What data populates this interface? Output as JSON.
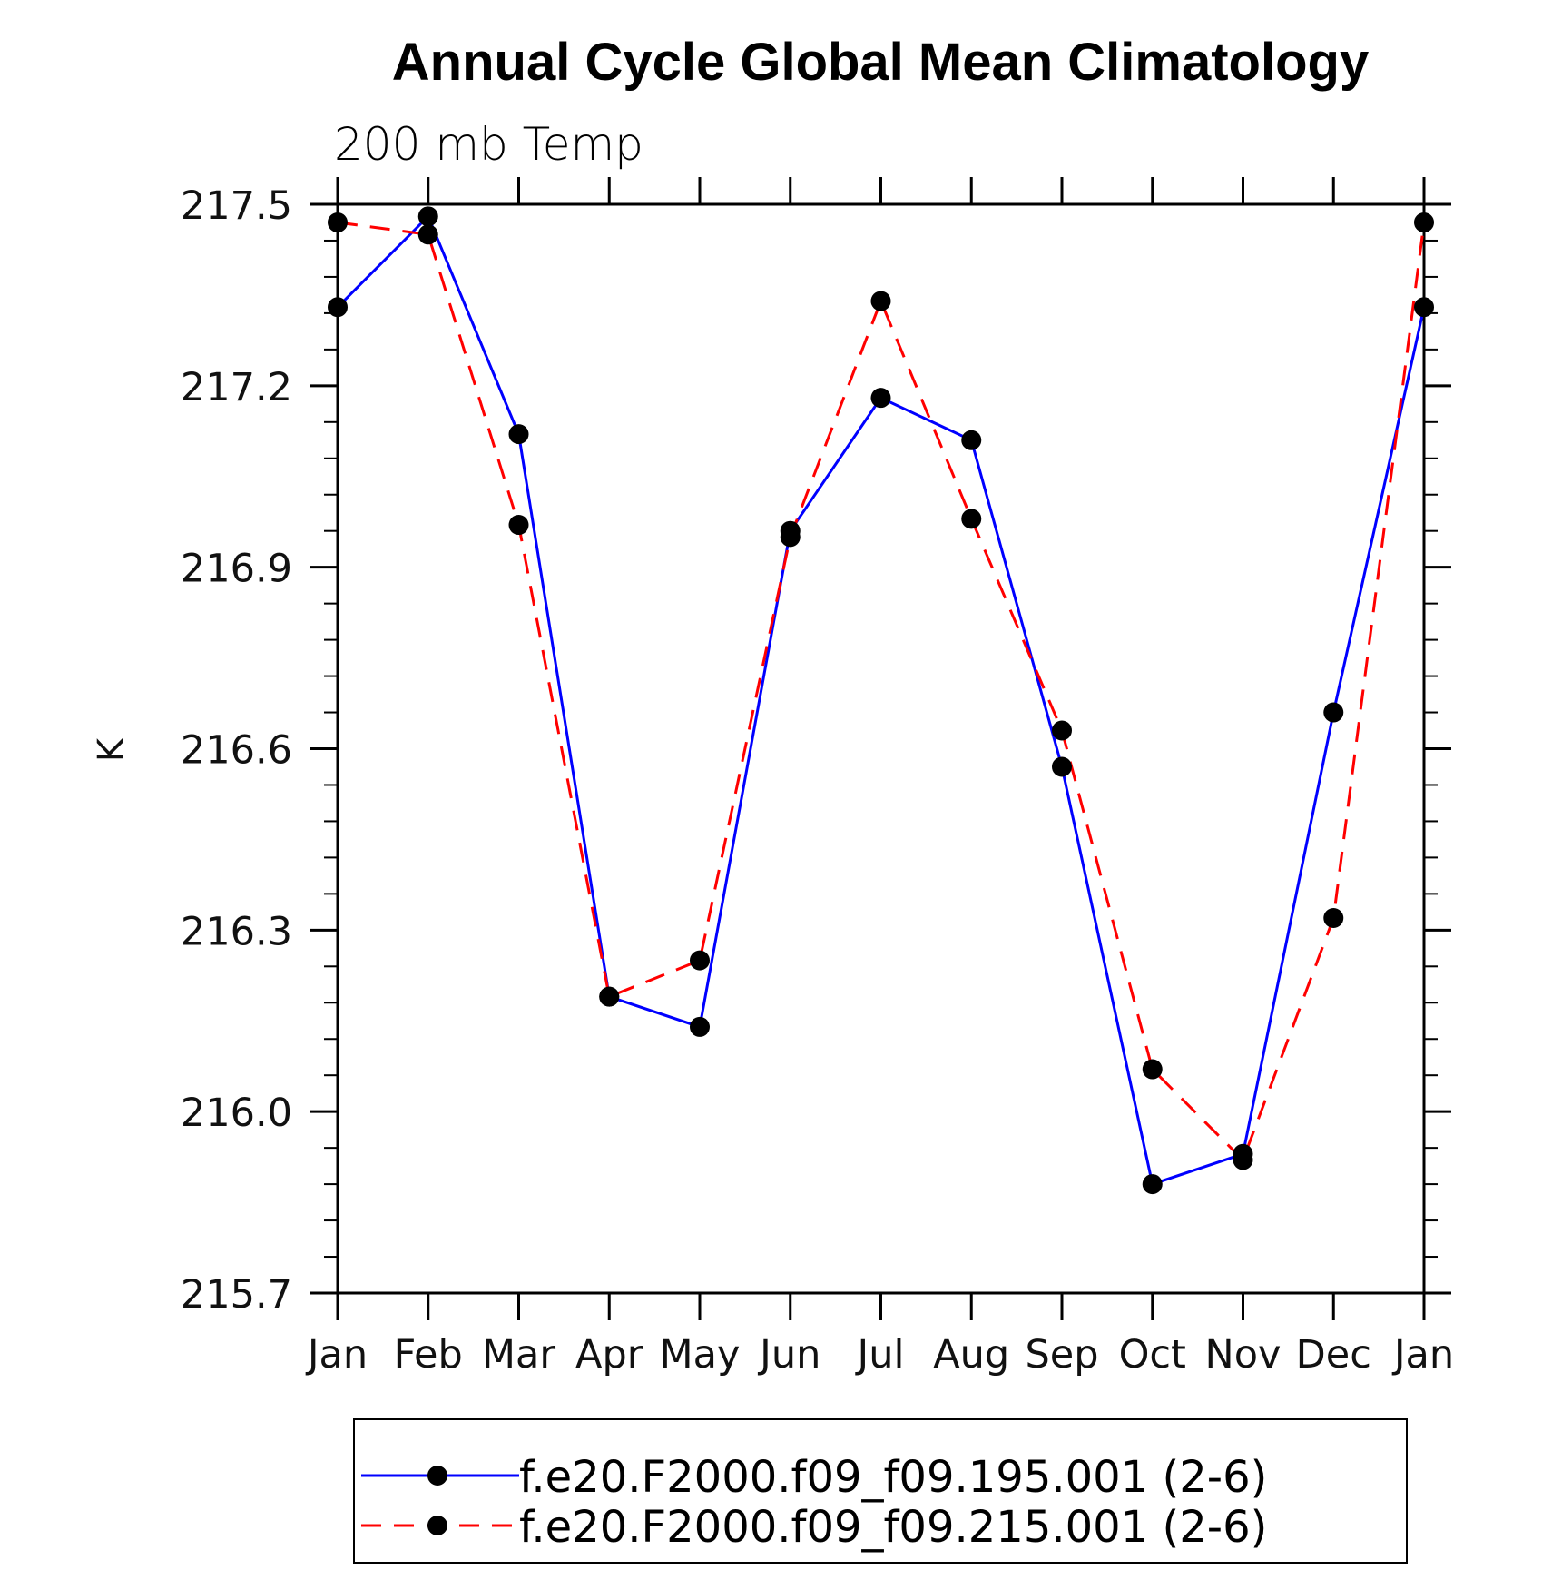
{
  "chart_data": {
    "type": "line",
    "title": "Annual Cycle Global Mean Climatology",
    "subtitle": "200 mb Temp",
    "ylabel": "K",
    "xlabel": "",
    "categories": [
      "Jan",
      "Feb",
      "Mar",
      "Apr",
      "May",
      "Jun",
      "Jul",
      "Aug",
      "Sep",
      "Oct",
      "Nov",
      "Dec",
      "Jan"
    ],
    "ylim": [
      215.7,
      217.5
    ],
    "yticks": [
      "217.5",
      "217.2",
      "216.9",
      "216.6",
      "216.3",
      "216.0",
      "215.7"
    ],
    "series": [
      {
        "name": "f.e20.F2000.f09_f09.195.001 (2-6)",
        "color": "#0000ff",
        "dash": "solid",
        "marker": "filled-circle",
        "values": [
          217.33,
          217.48,
          217.12,
          216.19,
          216.14,
          216.96,
          217.18,
          217.11,
          216.57,
          215.88,
          215.93,
          216.66,
          217.33
        ]
      },
      {
        "name": "f.e20.F2000.f09_f09.215.001 (2-6)",
        "color": "#ff0000",
        "dash": "dashed",
        "marker": "filled-circle",
        "values": [
          217.47,
          217.45,
          216.97,
          216.19,
          216.25,
          216.95,
          217.34,
          216.98,
          216.63,
          216.07,
          215.92,
          216.32,
          217.47
        ]
      }
    ],
    "grid": false,
    "legend_position": "bottom"
  }
}
